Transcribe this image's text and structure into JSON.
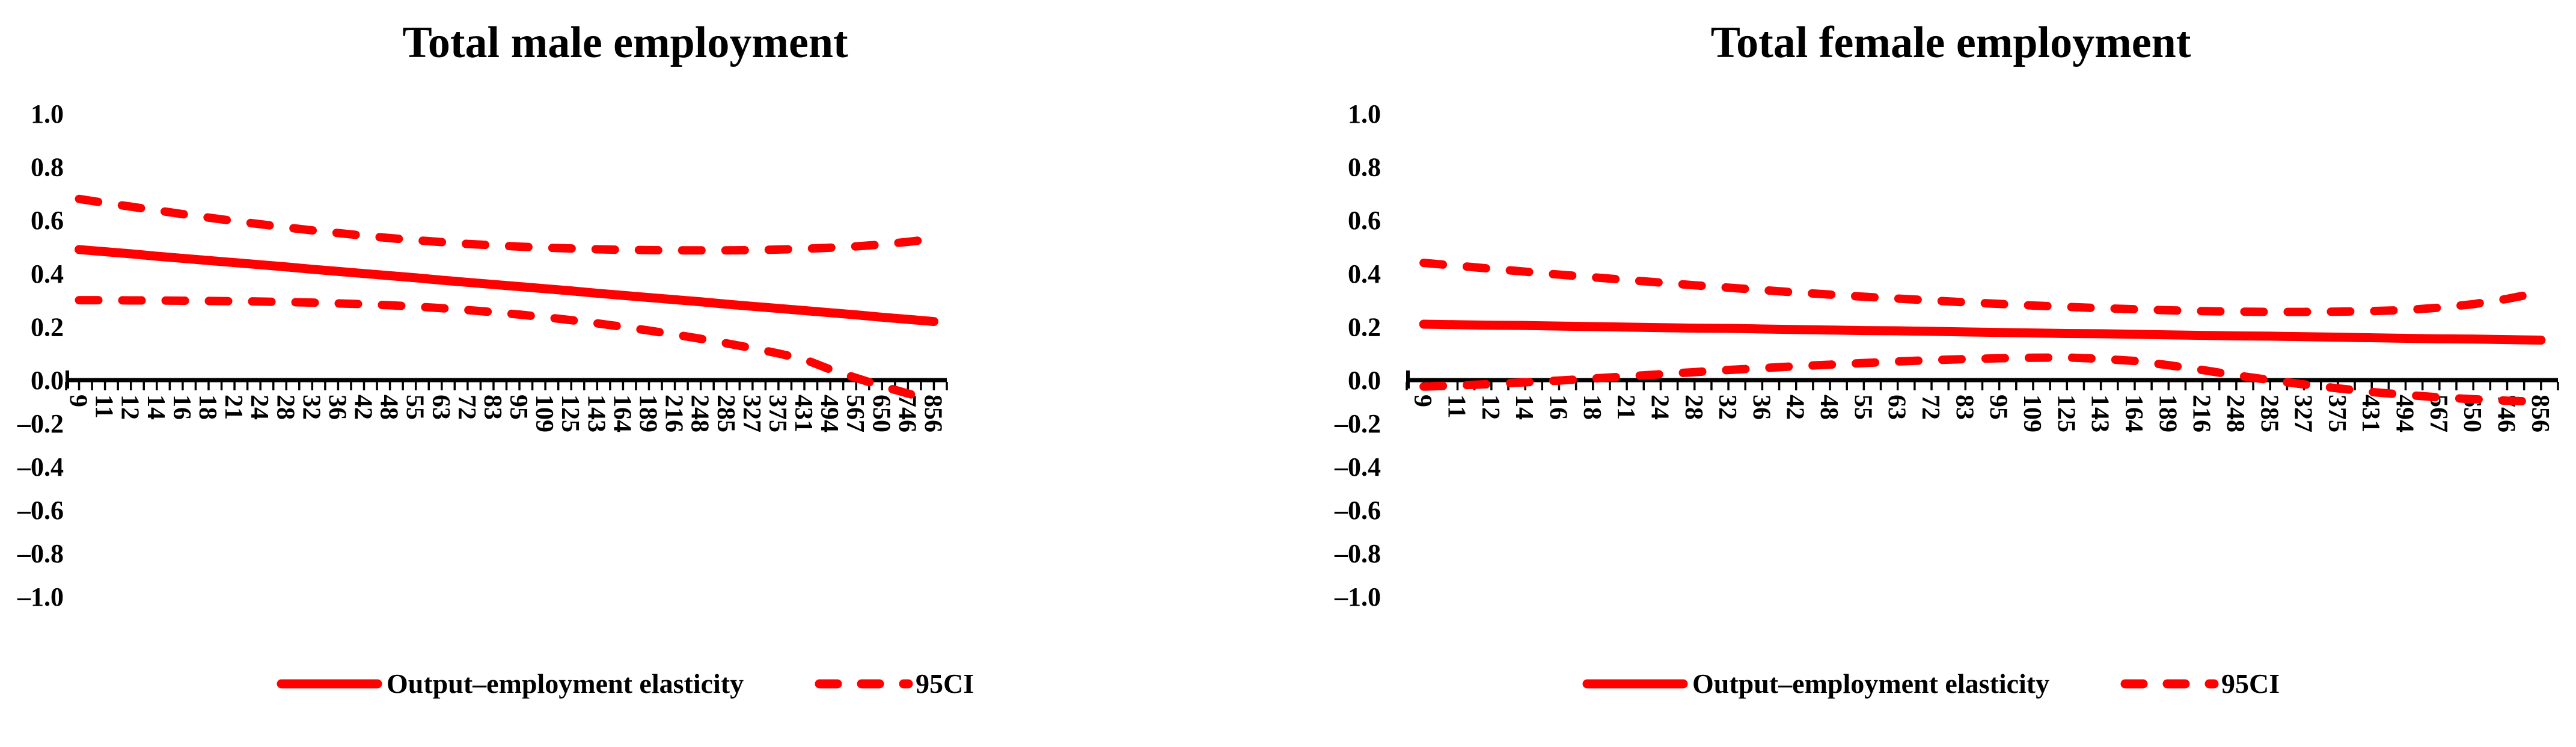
{
  "chart_data": [
    {
      "type": "line",
      "title": "Total male employment",
      "ylim": [
        -1.0,
        1.0
      ],
      "grid": false,
      "legend_position": "bottom",
      "line_color": "#ff0000",
      "axis_color": "#000000",
      "y_tick_labels": [
        "1.0",
        "0.8",
        "0.6",
        "0.4",
        "0.2",
        "0.0",
        "–0.2",
        "–0.4",
        "–0.6",
        "–0.8",
        "–1.0"
      ],
      "categories": [
        9,
        11,
        12,
        14,
        16,
        18,
        21,
        24,
        28,
        32,
        36,
        42,
        48,
        55,
        63,
        72,
        83,
        95,
        109,
        125,
        143,
        164,
        189,
        216,
        248,
        285,
        327,
        375,
        431,
        494,
        567,
        650,
        746,
        856
      ],
      "legend": [
        {
          "label": "Output–employment elasticity",
          "style": "solid"
        },
        {
          "label": "95CI",
          "style": "dashed"
        }
      ],
      "series": [
        {
          "name": "Output–employment elasticity",
          "style": "solid",
          "values": [
            0.49,
            0.482,
            0.474,
            0.465,
            0.457,
            0.449,
            0.441,
            0.433,
            0.425,
            0.416,
            0.408,
            0.4,
            0.392,
            0.384,
            0.375,
            0.367,
            0.359,
            0.351,
            0.343,
            0.335,
            0.326,
            0.318,
            0.31,
            0.302,
            0.294,
            0.285,
            0.277,
            0.269,
            0.261,
            0.253,
            0.245,
            0.236,
            0.228,
            0.22
          ]
        },
        {
          "name": "95CI upper",
          "style": "dashed",
          "values": [
            0.68,
            0.665,
            0.651,
            0.637,
            0.623,
            0.61,
            0.597,
            0.585,
            0.573,
            0.562,
            0.552,
            0.542,
            0.533,
            0.525,
            0.518,
            0.511,
            0.506,
            0.501,
            0.497,
            0.494,
            0.491,
            0.489,
            0.488,
            0.487,
            0.487,
            0.487,
            0.488,
            0.49,
            0.493,
            0.497,
            0.502,
            0.509,
            0.519,
            0.53
          ]
        },
        {
          "name": "95CI lower",
          "style": "dashed",
          "values": [
            0.3,
            0.3,
            0.299,
            0.299,
            0.298,
            0.297,
            0.296,
            0.295,
            0.293,
            0.291,
            0.288,
            0.285,
            0.281,
            0.276,
            0.27,
            0.263,
            0.255,
            0.246,
            0.236,
            0.225,
            0.213,
            0.2,
            0.186,
            0.171,
            0.155,
            0.138,
            0.12,
            0.1,
            0.078,
            0.04,
            0.008,
            -0.028,
            -0.062,
            -0.095
          ]
        }
      ]
    },
    {
      "type": "line",
      "title": "Total female employment",
      "ylim": [
        -1.0,
        1.0
      ],
      "grid": false,
      "legend_position": "bottom",
      "line_color": "#ff0000",
      "axis_color": "#000000",
      "y_tick_labels": [
        "1.0",
        "0.8",
        "0.6",
        "0.4",
        "0.2",
        "0.0",
        "–0.2",
        "–0.4",
        "–0.6",
        "–0.8",
        "–1.0"
      ],
      "categories": [
        9,
        11,
        12,
        14,
        16,
        18,
        21,
        24,
        28,
        32,
        36,
        42,
        48,
        55,
        63,
        72,
        83,
        95,
        109,
        125,
        143,
        164,
        189,
        216,
        248,
        285,
        327,
        375,
        431,
        494,
        567,
        650,
        746,
        856
      ],
      "legend": [
        {
          "label": "Output–employment elasticity",
          "style": "solid"
        },
        {
          "label": "95CI",
          "style": "dashed"
        }
      ],
      "series": [
        {
          "name": "Output–employment elasticity",
          "style": "solid",
          "values": [
            0.21,
            0.208,
            0.206,
            0.205,
            0.203,
            0.201,
            0.199,
            0.197,
            0.195,
            0.194,
            0.192,
            0.19,
            0.188,
            0.186,
            0.185,
            0.183,
            0.181,
            0.179,
            0.177,
            0.175,
            0.174,
            0.172,
            0.17,
            0.168,
            0.166,
            0.165,
            0.163,
            0.161,
            0.159,
            0.157,
            0.155,
            0.154,
            0.152,
            0.15
          ]
        },
        {
          "name": "95CI upper",
          "style": "dashed",
          "values": [
            0.44,
            0.429,
            0.418,
            0.407,
            0.396,
            0.386,
            0.376,
            0.366,
            0.356,
            0.347,
            0.338,
            0.329,
            0.321,
            0.313,
            0.306,
            0.299,
            0.292,
            0.286,
            0.28,
            0.275,
            0.27,
            0.266,
            0.262,
            0.259,
            0.257,
            0.256,
            0.256,
            0.257,
            0.259,
            0.263,
            0.272,
            0.285,
            0.305,
            0.33
          ]
        },
        {
          "name": "95CI lower",
          "style": "dashed",
          "values": [
            -0.03,
            -0.025,
            -0.018,
            -0.01,
            -0.002,
            0.006,
            0.014,
            0.022,
            0.03,
            0.038,
            0.045,
            0.052,
            0.058,
            0.064,
            0.07,
            0.075,
            0.079,
            0.082,
            0.084,
            0.085,
            0.08,
            0.072,
            0.056,
            0.038,
            0.018,
            0.0,
            -0.02,
            -0.038,
            -0.055,
            -0.068,
            -0.08,
            -0.088,
            -0.095,
            -0.1
          ]
        }
      ]
    }
  ]
}
